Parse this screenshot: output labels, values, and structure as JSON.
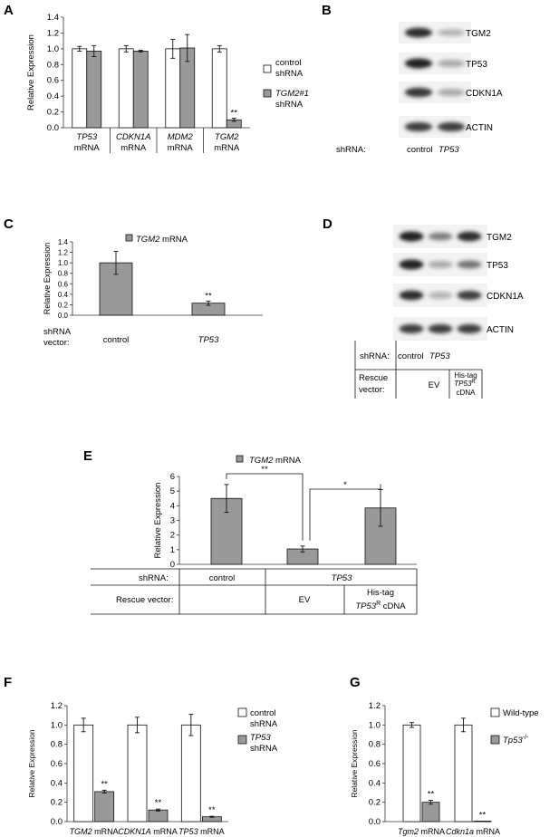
{
  "colors": {
    "control": "#ffffff",
    "treated": "#999999",
    "stroke": "#111111",
    "band": "#222222",
    "band_bg": "#f2f2f2"
  },
  "panels": {
    "A": {
      "label": "A"
    },
    "B": {
      "label": "B"
    },
    "C": {
      "label": "C"
    },
    "D": {
      "label": "D"
    },
    "E": {
      "label": "E"
    },
    "F": {
      "label": "F"
    },
    "G": {
      "label": "G"
    }
  },
  "chart_data": [
    {
      "id": "A",
      "type": "bar",
      "ylabel": "Relative Expression",
      "ylim": [
        0,
        1.4
      ],
      "yticks": [
        "0.0",
        "0.2",
        "0.4",
        "0.6",
        "0.8",
        "1.0",
        "1.2",
        "1.4"
      ],
      "categories": [
        {
          "gene": "TP53",
          "unit": "mRNA"
        },
        {
          "gene": "CDKN1A",
          "unit": "mRNA"
        },
        {
          "gene": "MDM2",
          "unit": "mRNA"
        },
        {
          "gene": "TGM2",
          "unit": "mRNA"
        }
      ],
      "series": [
        {
          "name": "control shRNA",
          "legend_l1": "control",
          "legend_l2": "shRNA",
          "values": [
            1.0,
            1.0,
            1.0,
            1.0
          ],
          "errors": [
            0.03,
            0.04,
            0.12,
            0.04
          ]
        },
        {
          "name": "TGM2#1 shRNA",
          "legend_l1": "TGM2#1",
          "legend_l2": "shRNA",
          "values": [
            0.97,
            0.97,
            1.01,
            0.1
          ],
          "errors": [
            0.07,
            0.01,
            0.17,
            0.02
          ]
        }
      ],
      "annotations": [
        "",
        "",
        "",
        "**"
      ]
    },
    {
      "id": "C",
      "type": "bar",
      "ylabel": "Relative Expression",
      "ylim": [
        0,
        1.4
      ],
      "yticks": [
        "0.0",
        "0.2",
        "0.4",
        "0.6",
        "0.8",
        "1.0",
        "1.2",
        "1.4"
      ],
      "legend": {
        "gene": "TGM2",
        "unit": "mRNA"
      },
      "row_label_l1": "shRNA",
      "row_label_l2": "vector:",
      "categories": [
        "control",
        "TP53"
      ],
      "values": [
        1.0,
        0.23
      ],
      "errors": [
        0.22,
        0.04
      ],
      "annotations": [
        "",
        "**"
      ]
    },
    {
      "id": "E",
      "type": "bar",
      "ylabel": "Relative Expression",
      "ylim": [
        0,
        6
      ],
      "yticks": [
        "0",
        "1",
        "2",
        "3",
        "4",
        "5",
        "6"
      ],
      "legend": {
        "gene": "TGM2",
        "unit": "mRNA"
      },
      "values": [
        4.5,
        1.05,
        3.85
      ],
      "errors": [
        0.95,
        0.2,
        1.25
      ],
      "brackets": [
        "**",
        "*"
      ],
      "table": {
        "row1_label": "shRNA:",
        "row2_label": "Rescue vector:",
        "control": "control",
        "tp53": "TP53",
        "ev": "EV",
        "his_l1": "His-tag",
        "his_gene": "TP53",
        "his_sup": "R",
        "his_cdna": "cDNA"
      }
    },
    {
      "id": "F",
      "type": "bar",
      "ylabel": "Relative Expression",
      "ylim": [
        0,
        1.2
      ],
      "yticks": [
        "0.0",
        "0.2",
        "0.4",
        "0.6",
        "0.8",
        "1.0",
        "1.2"
      ],
      "categories": [
        {
          "gene": "TGM2",
          "unit": "mRNA"
        },
        {
          "gene": "CDKN1A",
          "unit": "mRNA"
        },
        {
          "gene": "TP53",
          "unit": "mRNA"
        }
      ],
      "series": [
        {
          "name": "control shRNA",
          "legend_l1": "control",
          "legend_l2": "shRNA",
          "values": [
            1.0,
            1.0,
            1.0
          ],
          "errors": [
            0.07,
            0.08,
            0.11
          ]
        },
        {
          "name": "TP53 shRNA",
          "legend_l1": "TP53",
          "legend_l2": "shRNA",
          "values": [
            0.31,
            0.12,
            0.05
          ],
          "errors": [
            0.015,
            0.01,
            0.005
          ]
        }
      ],
      "annotations": [
        "**",
        "**",
        "**"
      ]
    },
    {
      "id": "G",
      "type": "bar",
      "ylabel": "Relative Expression",
      "ylim": [
        0,
        1.2
      ],
      "yticks": [
        "0.0",
        "0.2",
        "0.4",
        "0.6",
        "0.8",
        "1.0",
        "1.2"
      ],
      "categories": [
        {
          "gene": "Tgm2",
          "unit": "mRNA"
        },
        {
          "gene": "Cdkn1a",
          "unit": "mRNA"
        }
      ],
      "series": [
        {
          "name": "Wild-type",
          "legend_l1": "Wild-type",
          "values": [
            1.0,
            1.0
          ],
          "errors": [
            0.025,
            0.07
          ]
        },
        {
          "name": "Tp53-/-",
          "legend_gene": "Tp53",
          "legend_sup": "-/-",
          "values": [
            0.2,
            0.005
          ],
          "errors": [
            0.02,
            0.0
          ]
        }
      ],
      "annotations": [
        "**",
        "**"
      ]
    }
  ],
  "blots": {
    "B": {
      "proteins": [
        "TGM2",
        "TP53",
        "CDKN1A",
        "ACTIN"
      ],
      "lane_header": "shRNA:",
      "lanes": [
        "control",
        "TP53"
      ],
      "intensity": [
        [
          0.95,
          0.3
        ],
        [
          1.0,
          0.35
        ],
        [
          0.9,
          0.35
        ],
        [
          0.85,
          0.85
        ]
      ]
    },
    "D": {
      "proteins": [
        "TGM2",
        "TP53",
        "CDKN1A",
        "ACTIN"
      ],
      "intensity": [
        [
          1.0,
          0.55,
          0.95
        ],
        [
          1.0,
          0.35,
          0.6
        ],
        [
          0.95,
          0.3,
          0.85
        ],
        [
          0.85,
          0.85,
          0.85
        ]
      ],
      "table": {
        "row1_label": "shRNA:",
        "row2_l1": "Rescue",
        "row2_l2": "vector:",
        "control": "control",
        "tp53": "TP53",
        "ev": "EV",
        "his_l1": "His-tag",
        "his_gene": "TP53",
        "his_sup": "R",
        "his_cdna": "cDNA"
      }
    }
  }
}
